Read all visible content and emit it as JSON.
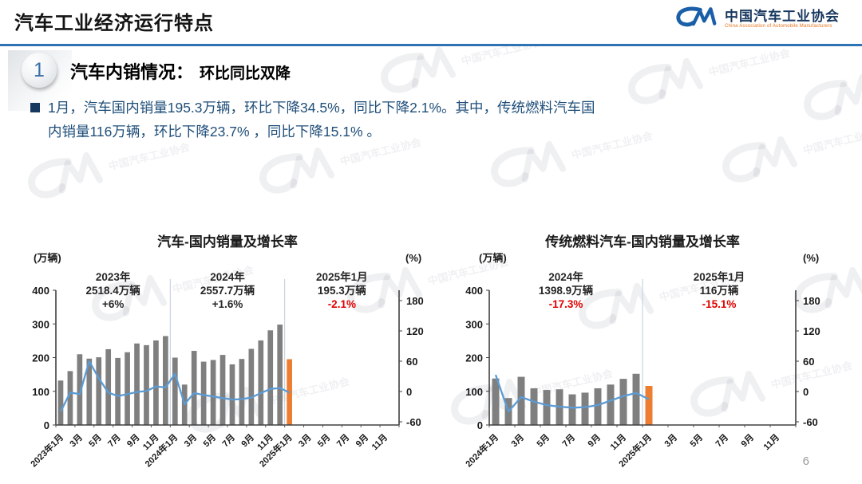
{
  "header": {
    "title": "汽车工业经济运行特点",
    "logo": {
      "mark": "CM",
      "name_cn": "中国汽车工业协会",
      "name_en": "China Association of Automobile Manufacturers"
    }
  },
  "section": {
    "number": "1",
    "title": "汽车内销情况：",
    "subtitle": "环比同比双降"
  },
  "bullet": {
    "text": "1月，汽车国内销量195.3万辆，环比下降34.5%，同比下降2.1%。其中，传统燃料汽车国内销量116万辆，环比下降23.7% ，同比下降15.1% 。"
  },
  "watermark": {
    "text": "中国汽车工业协会",
    "mark": "CM"
  },
  "page_number": "6",
  "colors": {
    "accent_blue": "#2E74B5",
    "text_navy": "#1F4E79",
    "red": "#E00000"
  },
  "chart_data": [
    {
      "type": "bar+line",
      "title": "汽车-国内销量及增长率",
      "unit_left": "(万辆)",
      "unit_right": "(%)",
      "y_left": {
        "min": 0,
        "max": 400,
        "ticks": [
          400,
          300,
          200,
          100,
          0
        ]
      },
      "y_right": {
        "min": -60,
        "max": 180,
        "ticks": [
          180,
          120,
          60,
          0,
          -60
        ]
      },
      "x_tick_labels": [
        "2023年1月",
        "3月",
        "5月",
        "7月",
        "9月",
        "11月",
        "2024年1月",
        "3月",
        "5月",
        "7月",
        "9月",
        "11月",
        "2025年1月",
        "3月",
        "5月",
        "7月",
        "9月",
        "11月"
      ],
      "total_slots": 36,
      "separators": [
        12,
        24
      ],
      "bars": [
        132,
        160,
        210,
        197,
        201,
        225,
        199,
        216,
        242,
        237,
        251,
        264,
        200,
        120,
        220,
        188,
        193,
        208,
        180,
        196,
        226,
        251,
        281,
        298,
        195.3
      ],
      "line": [
        -40,
        -2,
        -5,
        60,
        26,
        -2,
        -9,
        -5,
        -1,
        1,
        10,
        8,
        35,
        -25,
        -3,
        -7,
        -10,
        -13,
        -16,
        -15,
        -12,
        -3,
        5,
        7,
        -2.1
      ],
      "bar_color": "#7F7F7F",
      "highlight_bar_color": "#ED7D31",
      "line_color": "#5B9BD5",
      "annotations": [
        {
          "period": "2023年",
          "total": "2518.4万辆",
          "growth": "+6%",
          "growth_red": false
        },
        {
          "period": "2024年",
          "total": "2557.7万辆",
          "growth": "+1.6%",
          "growth_red": false
        },
        {
          "period": "2025年1月",
          "total": "195.3万辆",
          "growth": "-2.1%",
          "growth_red": true
        }
      ]
    },
    {
      "type": "bar+line",
      "title": "传统燃料汽车-国内销量及增长率",
      "unit_left": "(万辆)",
      "unit_right": "(%)",
      "y_left": {
        "min": 0,
        "max": 400,
        "ticks": [
          400,
          300,
          200,
          100,
          0
        ]
      },
      "y_right": {
        "min": -60,
        "max": 180,
        "ticks": [
          180,
          120,
          60,
          0,
          -60
        ]
      },
      "x_tick_labels": [
        "2024年1月",
        "3月",
        "5月",
        "7月",
        "9月",
        "11月",
        "2025年1月",
        "3月",
        "5月",
        "7月",
        "9月",
        "11月"
      ],
      "total_slots": 24,
      "separators": [
        12
      ],
      "bars": [
        138,
        80,
        143,
        109,
        104,
        106,
        91,
        96,
        109,
        120,
        137,
        152,
        116
      ],
      "line": [
        33,
        -40,
        -11,
        -20,
        -27,
        -30,
        -32,
        -31,
        -27,
        -18,
        -9,
        -3,
        -15.1
      ],
      "bar_color": "#7F7F7F",
      "highlight_bar_color": "#ED7D31",
      "line_color": "#5B9BD5",
      "annotations": [
        {
          "period": "2024年",
          "total": "1398.9万辆",
          "growth": "-17.3%",
          "growth_red": true
        },
        {
          "period": "2025年1月",
          "total": "116万辆",
          "growth": "-15.1%",
          "growth_red": true
        }
      ]
    }
  ]
}
